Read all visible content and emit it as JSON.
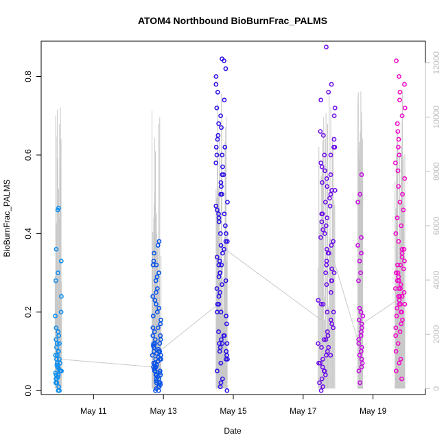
{
  "chart_data": {
    "type": "scatter",
    "title": "ATOM4 Northbound BioBurnFrac_PALMS",
    "xlabel": "Date",
    "ylabel": "BioBurnFrac_PALMS",
    "xlim": [
      "2018-05-09T12:00",
      "2018-05-20T12:00"
    ],
    "ylim": [
      -0.01,
      0.89
    ],
    "x_ticks": [
      {
        "date": "2018-05-11",
        "label": "May 11"
      },
      {
        "date": "2018-05-13",
        "label": "May 13"
      },
      {
        "date": "2018-05-15",
        "label": "May 15"
      },
      {
        "date": "2018-05-17",
        "label": "May 17"
      },
      {
        "date": "2018-05-19",
        "label": "May 19"
      }
    ],
    "y_ticks": [
      "0.0",
      "0.2",
      "0.4",
      "0.6",
      "0.8"
    ],
    "y2_range": [
      0,
      12500
    ],
    "y2_ticks": [
      "0",
      "2000",
      "4000",
      "6000",
      "8000",
      "10000",
      "12000"
    ],
    "grid": false,
    "legend": "none",
    "altitude_color": "#c8c8c8",
    "series": [
      {
        "color": "#0f8ff0",
        "flight": {
          "start": "2018-05-09T21:30",
          "end": "2018-05-10T02:00"
        },
        "values": [
          0.0,
          0.01,
          0.02,
          0.03,
          0.035,
          0.04,
          0.045,
          0.05,
          0.055,
          0.06,
          0.065,
          0.07,
          0.08,
          0.09,
          0.1,
          0.11,
          0.12,
          0.13,
          0.14,
          0.15,
          0.16,
          0.19,
          0.2,
          0.24,
          0.28,
          0.3,
          0.33,
          0.36,
          0.46,
          0.465,
          0.0,
          0.02,
          0.04,
          0.05,
          0.06,
          0.08,
          0.1,
          0.12,
          0.03,
          0.05,
          0.07,
          0.09
        ]
      },
      {
        "color": "#0b55e8",
        "flight": {
          "start": "2018-05-12T16:00",
          "end": "2018-05-12T22:30"
        },
        "values": [
          0.0,
          0.005,
          0.01,
          0.015,
          0.02,
          0.025,
          0.03,
          0.035,
          0.04,
          0.045,
          0.05,
          0.055,
          0.06,
          0.065,
          0.07,
          0.075,
          0.08,
          0.085,
          0.09,
          0.095,
          0.1,
          0.105,
          0.11,
          0.115,
          0.12,
          0.13,
          0.14,
          0.15,
          0.16,
          0.17,
          0.18,
          0.19,
          0.2,
          0.21,
          0.22,
          0.23,
          0.24,
          0.25,
          0.26,
          0.28,
          0.29,
          0.3,
          0.32,
          0.33,
          0.35,
          0.37,
          0.38,
          0.32,
          0.0,
          0.01,
          0.02,
          0.03,
          0.04,
          0.05,
          0.06,
          0.07,
          0.08,
          0.09,
          0.1,
          0.11,
          0.12,
          0.13,
          0.02,
          0.04,
          0.06,
          0.08,
          0.1,
          0.12,
          0.14,
          0.16,
          0.05,
          0.07
        ]
      },
      {
        "color": "#2d14e6",
        "flight": {
          "start": "2018-05-14T12:00",
          "end": "2018-05-14T20:00"
        },
        "values": [
          0.0,
          0.01,
          0.02,
          0.03,
          0.05,
          0.07,
          0.08,
          0.1,
          0.11,
          0.12,
          0.13,
          0.14,
          0.15,
          0.17,
          0.19,
          0.2,
          0.22,
          0.24,
          0.25,
          0.27,
          0.29,
          0.3,
          0.32,
          0.33,
          0.35,
          0.37,
          0.38,
          0.4,
          0.42,
          0.43,
          0.45,
          0.47,
          0.48,
          0.5,
          0.52,
          0.53,
          0.55,
          0.57,
          0.58,
          0.6,
          0.62,
          0.64,
          0.65,
          0.67,
          0.68,
          0.7,
          0.72,
          0.74,
          0.76,
          0.78,
          0.8,
          0.82,
          0.84,
          0.845,
          0.1,
          0.12,
          0.14,
          0.36,
          0.38,
          0.4,
          0.45,
          0.5,
          0.55,
          0.3,
          0.32,
          0.34,
          0.08,
          0.09,
          0.12,
          0.26,
          0.28,
          0.6,
          0.62,
          0.2,
          0.22,
          0.44,
          0.46
        ]
      },
      {
        "color": "#7010e8",
        "flight": {
          "start": "2018-05-17T10:00",
          "end": "2018-05-17T22:00"
        },
        "values": [
          0.0,
          0.01,
          0.02,
          0.03,
          0.04,
          0.05,
          0.06,
          0.07,
          0.08,
          0.09,
          0.1,
          0.11,
          0.12,
          0.13,
          0.14,
          0.15,
          0.16,
          0.17,
          0.18,
          0.2,
          0.22,
          0.23,
          0.25,
          0.27,
          0.28,
          0.3,
          0.31,
          0.32,
          0.33,
          0.35,
          0.36,
          0.38,
          0.4,
          0.41,
          0.42,
          0.44,
          0.45,
          0.47,
          0.48,
          0.5,
          0.51,
          0.52,
          0.53,
          0.55,
          0.57,
          0.58,
          0.6,
          0.62,
          0.64,
          0.65,
          0.66,
          0.7,
          0.72,
          0.74,
          0.76,
          0.78,
          0.875,
          0.05,
          0.07,
          0.09,
          0.11,
          0.13,
          0.35,
          0.37,
          0.39,
          0.43,
          0.45,
          0.49,
          0.51,
          0.54,
          0.56,
          0.6,
          0.62,
          0.28,
          0.3,
          0.2,
          0.22
        ]
      },
      {
        "color": "#c40fe0",
        "flight": {
          "start": "2018-05-18T13:30",
          "end": "2018-05-18T17:00"
        },
        "values": [
          0.02,
          0.05,
          0.06,
          0.07,
          0.08,
          0.09,
          0.1,
          0.11,
          0.12,
          0.13,
          0.14,
          0.15,
          0.16,
          0.17,
          0.18,
          0.19,
          0.2,
          0.21,
          0.28,
          0.3,
          0.33,
          0.35,
          0.37,
          0.39,
          0.48,
          0.5,
          0.55
        ]
      },
      {
        "color": "#f00cc8",
        "flight": {
          "start": "2018-05-19T15:00",
          "end": "2018-05-19T22:00"
        },
        "values": [
          0.03,
          0.05,
          0.07,
          0.08,
          0.1,
          0.12,
          0.14,
          0.15,
          0.16,
          0.17,
          0.18,
          0.19,
          0.2,
          0.21,
          0.22,
          0.23,
          0.24,
          0.25,
          0.26,
          0.27,
          0.28,
          0.29,
          0.3,
          0.31,
          0.32,
          0.33,
          0.34,
          0.35,
          0.36,
          0.38,
          0.4,
          0.42,
          0.44,
          0.46,
          0.48,
          0.5,
          0.52,
          0.54,
          0.56,
          0.58,
          0.6,
          0.62,
          0.64,
          0.66,
          0.68,
          0.7,
          0.72,
          0.74,
          0.76,
          0.78,
          0.8,
          0.84,
          0.22,
          0.24,
          0.26,
          0.28,
          0.3,
          0.2,
          0.22,
          0.24,
          0.26,
          0.32,
          0.36
        ]
      }
    ]
  }
}
